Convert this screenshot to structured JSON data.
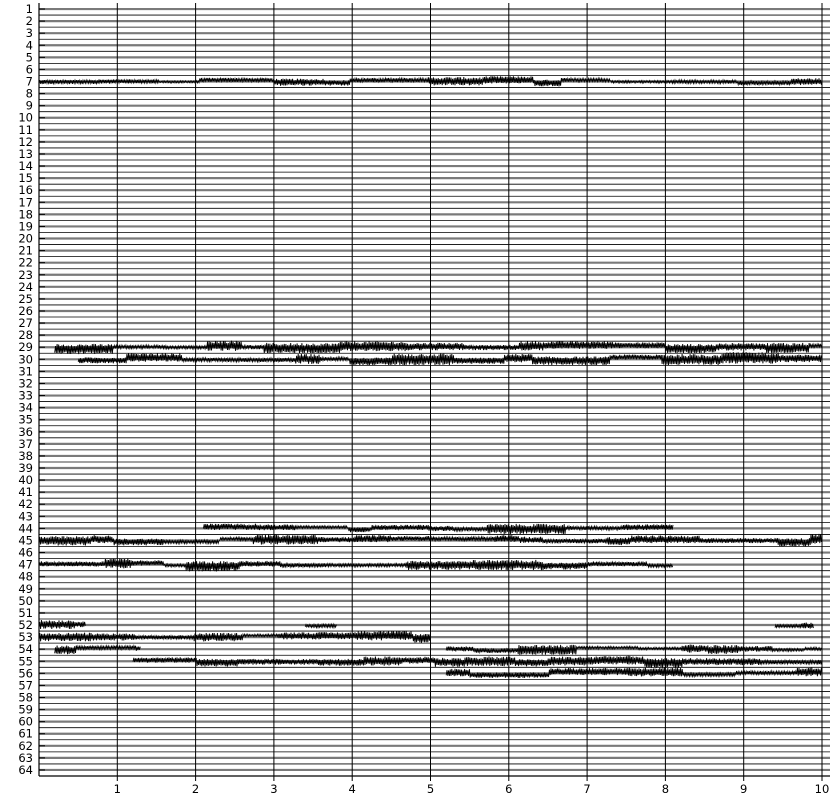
{
  "chart_data": {
    "type": "line",
    "title": "",
    "xlabel": "",
    "ylabel": "",
    "xlim": [
      0,
      10
    ],
    "ylim": [
      0.5,
      64.5
    ],
    "y_inverted": true,
    "grid": {
      "x": true,
      "y": true
    },
    "legend": "none",
    "x_ticks": [
      "1",
      "2",
      "3",
      "4",
      "5",
      "6",
      "7",
      "8",
      "9",
      "10"
    ],
    "channel_labels": [
      "1",
      "2",
      "3",
      "4",
      "5",
      "6",
      "7",
      "8",
      "9",
      "10",
      "11",
      "12",
      "13",
      "14",
      "15",
      "16",
      "17",
      "18",
      "19",
      "20",
      "21",
      "22",
      "23",
      "24",
      "25",
      "26",
      "27",
      "28",
      "29",
      "30",
      "31",
      "32",
      "33",
      "34",
      "35",
      "36",
      "37",
      "38",
      "39",
      "40",
      "41",
      "42",
      "43",
      "44",
      "45",
      "46",
      "47",
      "48",
      "49",
      "50",
      "51",
      "52",
      "53",
      "54",
      "55",
      "56",
      "57",
      "58",
      "59",
      "60",
      "61",
      "62",
      "63",
      "64"
    ],
    "active_channels": [
      {
        "channel": 7,
        "segments": [
          [
            0,
            10
          ]
        ],
        "amplitude": 0.35
      },
      {
        "channel": 29,
        "segments": [
          [
            0.2,
            10
          ]
        ],
        "amplitude": 0.45
      },
      {
        "channel": 30,
        "segments": [
          [
            0.5,
            10
          ]
        ],
        "amplitude": 0.45
      },
      {
        "channel": 44,
        "segments": [
          [
            2.1,
            8.1
          ]
        ],
        "amplitude": 0.4
      },
      {
        "channel": 45,
        "segments": [
          [
            0,
            10
          ]
        ],
        "amplitude": 0.45
      },
      {
        "channel": 47,
        "segments": [
          [
            0,
            8.1
          ]
        ],
        "amplitude": 0.4
      },
      {
        "channel": 52,
        "segments": [
          [
            0,
            0.6
          ],
          [
            3.4,
            3.8
          ],
          [
            9.4,
            9.9
          ]
        ],
        "amplitude": 0.35
      },
      {
        "channel": 53,
        "segments": [
          [
            0,
            5.0
          ]
        ],
        "amplitude": 0.4
      },
      {
        "channel": 54,
        "segments": [
          [
            0.2,
            1.3
          ],
          [
            5.2,
            10
          ]
        ],
        "amplitude": 0.4
      },
      {
        "channel": 55,
        "segments": [
          [
            1.2,
            10
          ]
        ],
        "amplitude": 0.4
      },
      {
        "channel": 56,
        "segments": [
          [
            5.2,
            10
          ]
        ],
        "amplitude": 0.4
      }
    ],
    "colors": {
      "trace": "#000000",
      "baseline": "#7a7a7a",
      "grid": "#000000"
    }
  }
}
